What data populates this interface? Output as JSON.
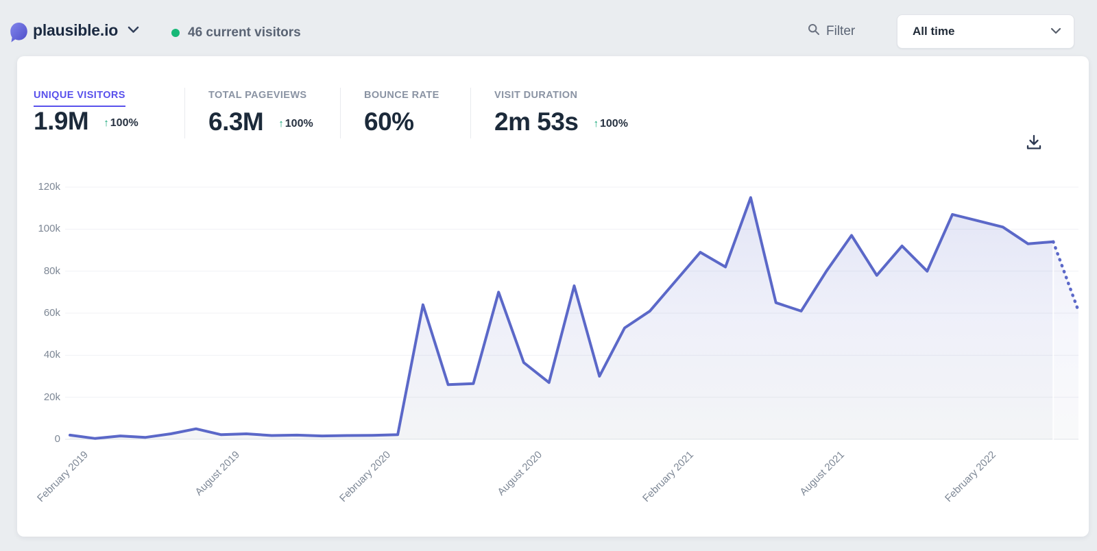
{
  "header": {
    "site_name": "plausible.io",
    "current_visitors": "46 current visitors",
    "filter_label": "Filter",
    "period_selected": "All time"
  },
  "colors": {
    "accent_indigo": "#5850ec",
    "line_indigo": "#5b68c8",
    "green": "#17b877",
    "dark_text": "#1c2a3a",
    "gray_text": "#8a93a3"
  },
  "stats": {
    "items": [
      {
        "label": "UNIQUE VISITORS",
        "value": "1.9M",
        "arrow": "↑",
        "change": "100%",
        "active": true
      },
      {
        "label": "TOTAL PAGEVIEWS",
        "value": "6.3M",
        "arrow": "↑",
        "change": "100%",
        "active": false
      },
      {
        "label": "BOUNCE RATE",
        "value": "60%",
        "arrow": "",
        "change": "",
        "active": false
      },
      {
        "label": "VISIT DURATION",
        "value": "2m 53s",
        "arrow": "↑",
        "change": "100%",
        "active": false
      }
    ]
  },
  "chart_data": {
    "type": "line",
    "series_name": "Unique visitors (monthly)",
    "x": [
      "February 2019",
      "March 2019",
      "April 2019",
      "May 2019",
      "June 2019",
      "July 2019",
      "August 2019",
      "September 2019",
      "October 2019",
      "November 2019",
      "December 2019",
      "January 2020",
      "February 2020",
      "March 2020",
      "April 2020",
      "May 2020",
      "June 2020",
      "July 2020",
      "August 2020",
      "September 2020",
      "October 2020",
      "November 2020",
      "December 2020",
      "January 2021",
      "February 2021",
      "March 2021",
      "April 2021",
      "May 2021",
      "June 2021",
      "July 2021",
      "August 2021",
      "September 2021",
      "October 2021",
      "November 2021",
      "December 2021",
      "January 2022",
      "February 2022",
      "March 2022",
      "April 2022",
      "May 2022",
      "June 2022"
    ],
    "values_thousands": [
      2.0,
      0.4,
      1.6,
      0.9,
      2.6,
      5.0,
      2.2,
      2.6,
      1.8,
      2.0,
      1.6,
      1.8,
      1.9,
      2.2,
      64,
      26,
      26.5,
      70,
      36.5,
      27,
      73,
      30,
      53,
      61,
      75,
      89,
      82,
      115,
      65,
      61,
      80,
      97,
      78,
      92,
      80,
      107,
      104,
      101,
      93,
      94,
      61
    ],
    "dotted_from_index": 39,
    "y_ticks": [
      "0",
      "20k",
      "40k",
      "60k",
      "80k",
      "100k",
      "120k"
    ],
    "ylim_thousands": [
      0,
      120
    ],
    "x_tick_indices": [
      0,
      6,
      12,
      18,
      24,
      30,
      36
    ],
    "grid": "horizontal",
    "legend": "none"
  }
}
